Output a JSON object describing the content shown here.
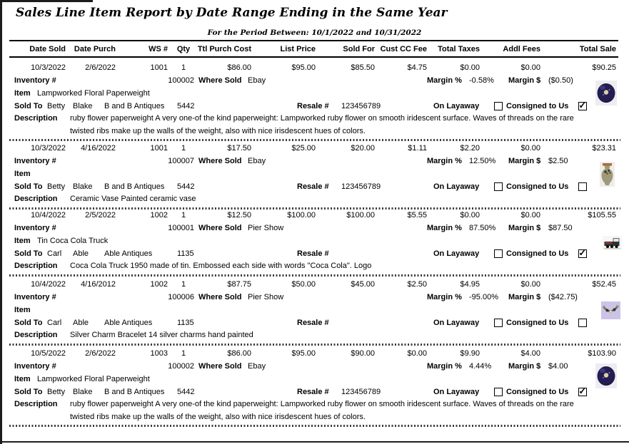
{
  "report": {
    "title": "Sales Line Item Report by Date Range Ending in the Same Year",
    "subtitle": "For the Period Between: 10/1/2022 and 10/31/2022"
  },
  "columns": [
    "Date Sold",
    "Date Purch",
    "WS #",
    "Qty",
    "Ttl Purch Cost",
    "List Price",
    "Sold For",
    "Cust CC Fee",
    "Total Taxes",
    "Addl Fees",
    "Total Sale"
  ],
  "labels": {
    "inventory": "Inventory #",
    "where_sold": "Where Sold",
    "margin_pct": "Margin %",
    "margin_dollar": "Margin $",
    "item": "Item",
    "sold_to": "Sold To",
    "resale": "Resale #",
    "on_layaway": "On Layaway",
    "consigned": "Consigned to Us",
    "description": "Description"
  },
  "records": [
    {
      "date_sold": "10/3/2022",
      "date_purch": "2/6/2022",
      "ws": "1001",
      "qty": "1",
      "ttl_purch_cost": "$86.00",
      "list_price": "$95.00",
      "sold_for": "$85.50",
      "cust_cc_fee": "$4.75",
      "total_taxes": "$0.00",
      "addl_fees": "$0.00",
      "total_sale": "$90.25",
      "inventory": "100002",
      "where_sold": "Ebay",
      "margin_pct": "-0.58%",
      "margin_dollar": "($0.50)",
      "item": "Lampworked Floral Paperweight",
      "buyer_first": "Betty",
      "buyer_last": "Blake",
      "buyer_company": "B and B Antiques",
      "buyer_acct": "5442",
      "resale": "123456789",
      "on_layaway": false,
      "consigned": true,
      "description": "ruby flower paperweight A very one-of the kind paperweight: Lampworked ruby flower on smooth iridescent surface.  Waves of threads on the rare twisted ribs make up the walls of the weight, also with nice irisdescent hues of colors.",
      "photo": "blue-glass-paperweight"
    },
    {
      "date_sold": "10/3/2022",
      "date_purch": "4/16/2022",
      "ws": "1001",
      "qty": "1",
      "ttl_purch_cost": "$17.50",
      "list_price": "$25.00",
      "sold_for": "$20.00",
      "cust_cc_fee": "$1.11",
      "total_taxes": "$2.20",
      "addl_fees": "$0.00",
      "total_sale": "$23.31",
      "inventory": "100007",
      "where_sold": "Ebay",
      "margin_pct": "12.50%",
      "margin_dollar": "$2.50",
      "item": "",
      "buyer_first": "Betty",
      "buyer_last": "Blake",
      "buyer_company": "B and B Antiques",
      "buyer_acct": "5442",
      "resale": "123456789",
      "on_layaway": false,
      "consigned": false,
      "description": "Ceramic Vase Painted ceramic vase",
      "photo": "ceramic-vase"
    },
    {
      "date_sold": "10/4/2022",
      "date_purch": "2/5/2022",
      "ws": "1002",
      "qty": "1",
      "ttl_purch_cost": "$12.50",
      "list_price": "$100.00",
      "sold_for": "$100.00",
      "cust_cc_fee": "$5.55",
      "total_taxes": "$0.00",
      "addl_fees": "$0.00",
      "total_sale": "$105.55",
      "inventory": "100001",
      "where_sold": "Pier Show",
      "margin_pct": "87.50%",
      "margin_dollar": "$87.50",
      "item": "Tin Coca Cola Truck",
      "buyer_first": "Carl",
      "buyer_last": "Able",
      "buyer_company": "Able Antiques",
      "buyer_acct": "1135",
      "resale": "",
      "on_layaway": false,
      "consigned": true,
      "description": "Coca Cola Truck 1950 made of tin.  Embossed each side with words \"Coca Cola\". Logo",
      "photo": "tin-truck"
    },
    {
      "date_sold": "10/4/2022",
      "date_purch": "4/16/2012",
      "ws": "1002",
      "qty": "1",
      "ttl_purch_cost": "$87.75",
      "list_price": "$50.00",
      "sold_for": "$45.00",
      "cust_cc_fee": "$2.50",
      "total_taxes": "$4.95",
      "addl_fees": "$0.00",
      "total_sale": "$52.45",
      "inventory": "100006",
      "where_sold": "Pier Show",
      "margin_pct": "-95.00%",
      "margin_dollar": "($42.75)",
      "item": "",
      "buyer_first": "Carl",
      "buyer_last": "Able",
      "buyer_company": "Able Antiques",
      "buyer_acct": "1135",
      "resale": "",
      "on_layaway": false,
      "consigned": false,
      "description": "Silver Charm Bracelet 14 silver charms hand painted",
      "photo": "charm-bracelet"
    },
    {
      "date_sold": "10/5/2022",
      "date_purch": "2/6/2022",
      "ws": "1003",
      "qty": "1",
      "ttl_purch_cost": "$86.00",
      "list_price": "$95.00",
      "sold_for": "$90.00",
      "cust_cc_fee": "$0.00",
      "total_taxes": "$9.90",
      "addl_fees": "$4.00",
      "total_sale": "$103.90",
      "inventory": "100002",
      "where_sold": "Ebay",
      "margin_pct": "4.44%",
      "margin_dollar": "$4.00",
      "item": "Lampworked Floral Paperweight",
      "buyer_first": "Betty",
      "buyer_last": "Blake",
      "buyer_company": "B and B Antiques",
      "buyer_acct": "5442",
      "resale": "123456789",
      "on_layaway": false,
      "consigned": true,
      "description": "ruby flower paperweight A very one-of the kind paperweight: Lampworked ruby flower on smooth iridescent surface.  Waves of threads on the rare twisted ribs make up the walls of the weight, also with nice irisdescent hues of colors.",
      "photo": "blue-glass-paperweight"
    }
  ]
}
